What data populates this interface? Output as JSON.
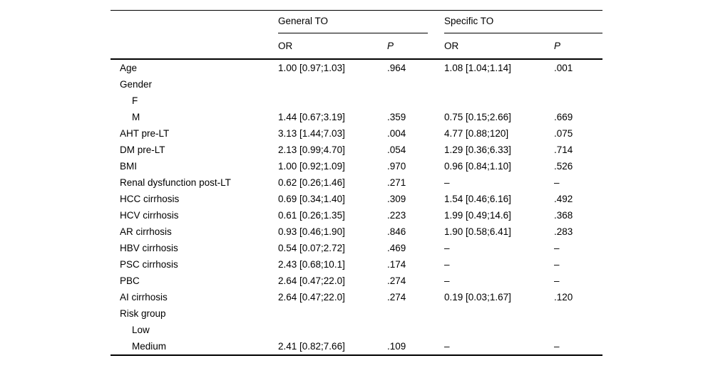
{
  "table": {
    "rule_color": "#000000",
    "background_color": "#ffffff",
    "col_groups": [
      {
        "label": "General TO"
      },
      {
        "label": "Specific TO"
      }
    ],
    "sub_headers": [
      "OR",
      "P",
      "OR",
      "P"
    ],
    "rows": [
      {
        "label": "Age",
        "indent": false,
        "cells": [
          "1.00 [0.97;1.03]",
          ".964",
          "1.08 [1.04;1.14]",
          ".001"
        ]
      },
      {
        "label": "Gender",
        "indent": false,
        "cells": [
          "",
          "",
          "",
          ""
        ]
      },
      {
        "label": "F",
        "indent": true,
        "cells": [
          "",
          "",
          "",
          ""
        ]
      },
      {
        "label": "M",
        "indent": true,
        "cells": [
          "1.44 [0.67;3.19]",
          ".359",
          "0.75 [0.15;2.66]",
          ".669"
        ]
      },
      {
        "label": "AHT pre-LT",
        "indent": false,
        "cells": [
          "3.13 [1.44;7.03]",
          ".004",
          "4.77 [0.88;120]",
          ".075"
        ]
      },
      {
        "label": "DM pre-LT",
        "indent": false,
        "cells": [
          "2.13 [0.99;4.70]",
          ".054",
          "1.29 [0.36;6.33]",
          ".714"
        ]
      },
      {
        "label": "BMI",
        "indent": false,
        "cells": [
          "1.00 [0.92;1.09]",
          ".970",
          "0.96 [0.84;1.10]",
          ".526"
        ]
      },
      {
        "label": "Renal dysfunction post-LT",
        "indent": false,
        "cells": [
          "0.62 [0.26;1.46]",
          ".271",
          "–",
          "–"
        ]
      },
      {
        "label": "HCC cirrhosis",
        "indent": false,
        "cells": [
          "0.69 [0.34;1.40]",
          ".309",
          "1.54 [0.46;6.16]",
          ".492"
        ]
      },
      {
        "label": "HCV cirrhosis",
        "indent": false,
        "cells": [
          "0.61 [0.26;1.35]",
          ".223",
          "1.99 [0.49;14.6]",
          ".368"
        ]
      },
      {
        "label": "AR cirrhosis",
        "indent": false,
        "cells": [
          "0.93 [0.46;1.90]",
          ".846",
          "1.90 [0.58;6.41]",
          ".283"
        ]
      },
      {
        "label": "HBV cirrhosis",
        "indent": false,
        "cells": [
          "0.54 [0.07;2.72]",
          ".469",
          "–",
          "–"
        ]
      },
      {
        "label": "PSC cirrhosis",
        "indent": false,
        "cells": [
          "2.43 [0.68;10.1]",
          ".174",
          "–",
          "–"
        ]
      },
      {
        "label": "PBC",
        "indent": false,
        "cells": [
          "2.64 [0.47;22.0]",
          ".274",
          "–",
          "–"
        ]
      },
      {
        "label": "AI cirrhosis",
        "indent": false,
        "cells": [
          "2.64 [0.47;22.0]",
          ".274",
          "0.19 [0.03;1.67]",
          ".120"
        ]
      },
      {
        "label": "Risk group",
        "indent": false,
        "cells": [
          "",
          "",
          "",
          ""
        ]
      },
      {
        "label": "Low",
        "indent": true,
        "cells": [
          "",
          "",
          "",
          ""
        ]
      },
      {
        "label": "Medium",
        "indent": true,
        "cells": [
          "2.41 [0.82;7.66]",
          ".109",
          "–",
          "–"
        ]
      }
    ]
  }
}
